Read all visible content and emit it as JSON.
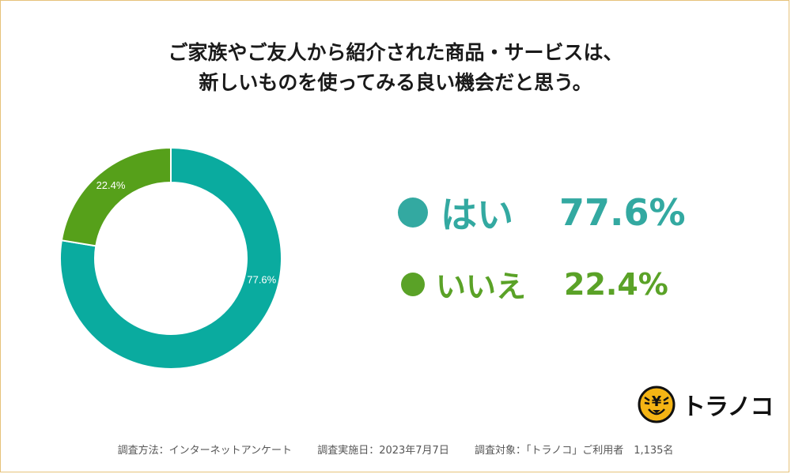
{
  "title": {
    "line1": "ご家族やご友人から紹介された商品・サービスは、",
    "line2": "新しいものを使ってみる良い機会だと思う。"
  },
  "chart_data": {
    "type": "pie",
    "donut": true,
    "categories": [
      "はい",
      "いいえ"
    ],
    "values": [
      77.6,
      22.4
    ],
    "data_labels": [
      "77.6%",
      "22.4%"
    ],
    "colors": [
      "#0aab9f",
      "#56a01a"
    ],
    "legend": [
      {
        "label": "はい",
        "value": "77.6%",
        "color": "#33a9a1"
      },
      {
        "label": "いいえ",
        "value": "22.4%",
        "color": "#5aa227"
      }
    ],
    "legend_position": "right"
  },
  "logo": {
    "icon": "tiger-coin-icon",
    "symbol": "¥",
    "text": "トラノコ"
  },
  "footer": {
    "method": "調査方法：インターネットアンケート",
    "date": "調査実施日：2023年7月7日",
    "target": "調査対象：「トラノコ」ご利用者　1,135名"
  }
}
